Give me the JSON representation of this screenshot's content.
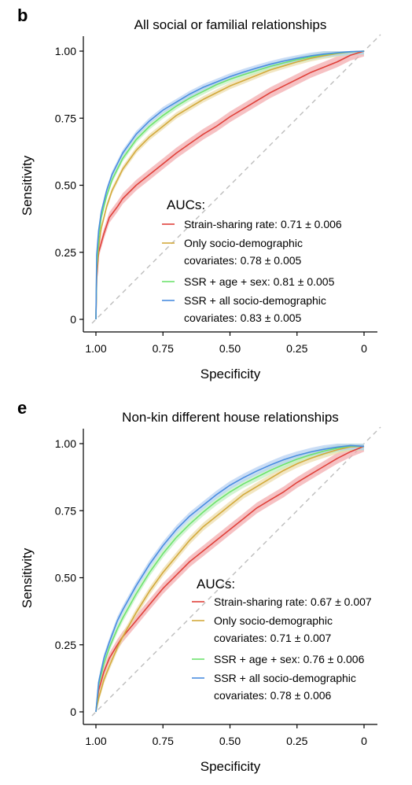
{
  "chart_data": [
    {
      "panel_letter": "b",
      "type": "line",
      "title": "All social or familial relationships",
      "xlabel": "Specificity",
      "ylabel": "Sensitivity",
      "xlim": [
        1.0,
        0.0
      ],
      "ylim": [
        0.0,
        1.0
      ],
      "x_ticks": [
        1.0,
        0.75,
        0.5,
        0.25,
        0.0
      ],
      "x_tick_labels": [
        "1.00",
        "0.75",
        "0.50",
        "0.25",
        "0"
      ],
      "y_ticks": [
        0.0,
        0.25,
        0.5,
        0.75,
        1.0
      ],
      "y_tick_labels": [
        "0",
        "0.25",
        "0.50",
        "0.75",
        "1.00"
      ],
      "reference_line": "diagonal",
      "legend_title": "AUCs:",
      "legend_position": "lower-right",
      "series": [
        {
          "label_lines": [
            "Strain-sharing rate: 0.71 ± 0.006"
          ],
          "color": "#e0413a",
          "band_color": "#f2a6aa",
          "band": 0.02,
          "x": [
            1.0,
            0.997,
            0.99,
            0.97,
            0.95,
            0.92,
            0.9,
            0.85,
            0.8,
            0.75,
            0.7,
            0.65,
            0.6,
            0.55,
            0.5,
            0.45,
            0.4,
            0.35,
            0.3,
            0.25,
            0.2,
            0.15,
            0.1,
            0.05,
            0.0
          ],
          "y": [
            0.0,
            0.15,
            0.25,
            0.32,
            0.38,
            0.42,
            0.45,
            0.5,
            0.54,
            0.58,
            0.62,
            0.655,
            0.69,
            0.72,
            0.755,
            0.785,
            0.815,
            0.845,
            0.87,
            0.895,
            0.92,
            0.94,
            0.96,
            0.985,
            1.0
          ]
        },
        {
          "label_lines": [
            "Only socio-demographic",
            "covariates: 0.78 ± 0.005"
          ],
          "color": "#d3aa3c",
          "band_color": "#ecdca8",
          "band": 0.012,
          "x": [
            1.0,
            0.997,
            0.99,
            0.98,
            0.96,
            0.94,
            0.92,
            0.9,
            0.85,
            0.8,
            0.75,
            0.7,
            0.65,
            0.6,
            0.55,
            0.5,
            0.45,
            0.4,
            0.35,
            0.3,
            0.25,
            0.2,
            0.15,
            0.1,
            0.05,
            0.0
          ],
          "y": [
            0.0,
            0.17,
            0.27,
            0.34,
            0.42,
            0.48,
            0.52,
            0.56,
            0.63,
            0.68,
            0.72,
            0.76,
            0.79,
            0.82,
            0.845,
            0.87,
            0.89,
            0.91,
            0.93,
            0.945,
            0.96,
            0.973,
            0.983,
            0.991,
            0.997,
            1.0
          ]
        },
        {
          "label_lines": [
            "SSR + age + sex: 0.81 ± 0.005"
          ],
          "color": "#6ee36e",
          "band_color": "#bff0bf",
          "band": 0.012,
          "x": [
            1.0,
            0.997,
            0.99,
            0.98,
            0.96,
            0.94,
            0.92,
            0.9,
            0.85,
            0.8,
            0.75,
            0.7,
            0.65,
            0.6,
            0.55,
            0.5,
            0.45,
            0.4,
            0.35,
            0.3,
            0.25,
            0.2,
            0.15,
            0.1,
            0.05,
            0.0
          ],
          "y": [
            0.0,
            0.2,
            0.3,
            0.38,
            0.46,
            0.52,
            0.56,
            0.6,
            0.67,
            0.72,
            0.76,
            0.795,
            0.825,
            0.85,
            0.875,
            0.895,
            0.912,
            0.928,
            0.943,
            0.956,
            0.968,
            0.978,
            0.987,
            0.993,
            0.997,
            1.0
          ]
        },
        {
          "label_lines": [
            "SSR + all socio-demographic",
            "covariates: 0.83 ± 0.005"
          ],
          "color": "#4a8ee0",
          "band_color": "#b3cff2",
          "band": 0.012,
          "x": [
            1.0,
            0.997,
            0.99,
            0.98,
            0.96,
            0.94,
            0.92,
            0.9,
            0.85,
            0.8,
            0.75,
            0.7,
            0.65,
            0.6,
            0.55,
            0.5,
            0.45,
            0.4,
            0.35,
            0.3,
            0.25,
            0.2,
            0.15,
            0.1,
            0.05,
            0.0
          ],
          "y": [
            0.0,
            0.24,
            0.33,
            0.4,
            0.48,
            0.54,
            0.58,
            0.62,
            0.69,
            0.74,
            0.78,
            0.81,
            0.84,
            0.865,
            0.885,
            0.905,
            0.922,
            0.937,
            0.951,
            0.963,
            0.973,
            0.982,
            0.989,
            0.994,
            0.998,
            1.0
          ]
        }
      ]
    },
    {
      "panel_letter": "e",
      "type": "line",
      "title": "Non-kin different house relationships",
      "xlabel": "Specificity",
      "ylabel": "Sensitivity",
      "xlim": [
        1.0,
        0.0
      ],
      "ylim": [
        0.0,
        1.0
      ],
      "x_ticks": [
        1.0,
        0.75,
        0.5,
        0.25,
        0.0
      ],
      "x_tick_labels": [
        "1.00",
        "0.75",
        "0.50",
        "0.25",
        "0"
      ],
      "y_ticks": [
        0.0,
        0.25,
        0.5,
        0.75,
        1.0
      ],
      "y_tick_labels": [
        "0",
        "0.25",
        "0.50",
        "0.75",
        "1.00"
      ],
      "reference_line": "diagonal",
      "legend_title": "AUCs:",
      "legend_position": "lower-right",
      "series": [
        {
          "label_lines": [
            "Strain-sharing rate: 0.67 ± 0.007"
          ],
          "color": "#e0413a",
          "band_color": "#f2a6aa",
          "band": 0.02,
          "x": [
            1.0,
            0.99,
            0.97,
            0.95,
            0.92,
            0.9,
            0.85,
            0.8,
            0.75,
            0.7,
            0.65,
            0.6,
            0.55,
            0.5,
            0.45,
            0.4,
            0.35,
            0.3,
            0.25,
            0.2,
            0.15,
            0.1,
            0.05,
            0.0
          ],
          "y": [
            0.0,
            0.08,
            0.15,
            0.2,
            0.25,
            0.28,
            0.34,
            0.4,
            0.46,
            0.51,
            0.56,
            0.6,
            0.64,
            0.68,
            0.72,
            0.76,
            0.79,
            0.82,
            0.855,
            0.885,
            0.915,
            0.945,
            0.97,
            0.99
          ]
        },
        {
          "label_lines": [
            "Only socio-demographic",
            "covariates: 0.71 ± 0.007"
          ],
          "color": "#d3aa3c",
          "band_color": "#ecdca8",
          "band": 0.015,
          "x": [
            1.0,
            0.99,
            0.97,
            0.95,
            0.92,
            0.9,
            0.85,
            0.8,
            0.75,
            0.7,
            0.65,
            0.6,
            0.55,
            0.5,
            0.45,
            0.4,
            0.35,
            0.3,
            0.25,
            0.2,
            0.15,
            0.1,
            0.05,
            0.0
          ],
          "y": [
            0.0,
            0.05,
            0.12,
            0.17,
            0.24,
            0.28,
            0.37,
            0.45,
            0.52,
            0.58,
            0.64,
            0.69,
            0.73,
            0.77,
            0.81,
            0.84,
            0.87,
            0.9,
            0.925,
            0.945,
            0.962,
            0.977,
            0.988,
            0.99
          ]
        },
        {
          "label_lines": [
            "SSR + age + sex: 0.76 ± 0.006"
          ],
          "color": "#6ee36e",
          "band_color": "#bff0bf",
          "band": 0.015,
          "x": [
            1.0,
            0.99,
            0.97,
            0.95,
            0.92,
            0.9,
            0.85,
            0.8,
            0.75,
            0.7,
            0.65,
            0.6,
            0.55,
            0.5,
            0.45,
            0.4,
            0.35,
            0.3,
            0.25,
            0.2,
            0.15,
            0.1,
            0.05,
            0.0
          ],
          "y": [
            0.0,
            0.1,
            0.18,
            0.24,
            0.31,
            0.35,
            0.44,
            0.52,
            0.59,
            0.65,
            0.7,
            0.745,
            0.785,
            0.82,
            0.85,
            0.875,
            0.9,
            0.922,
            0.942,
            0.958,
            0.972,
            0.983,
            0.991,
            0.99
          ]
        },
        {
          "label_lines": [
            "SSR + all socio-demographic",
            "covariates: 0.78 ± 0.006"
          ],
          "color": "#4a8ee0",
          "band_color": "#b3cff2",
          "band": 0.015,
          "x": [
            1.0,
            0.99,
            0.97,
            0.95,
            0.92,
            0.9,
            0.85,
            0.8,
            0.75,
            0.7,
            0.65,
            0.6,
            0.55,
            0.5,
            0.45,
            0.4,
            0.35,
            0.3,
            0.25,
            0.2,
            0.15,
            0.1,
            0.05,
            0.0
          ],
          "y": [
            0.0,
            0.11,
            0.2,
            0.26,
            0.34,
            0.38,
            0.47,
            0.55,
            0.62,
            0.68,
            0.73,
            0.77,
            0.81,
            0.845,
            0.873,
            0.898,
            0.92,
            0.94,
            0.956,
            0.969,
            0.979,
            0.987,
            0.993,
            0.99
          ]
        }
      ]
    }
  ]
}
